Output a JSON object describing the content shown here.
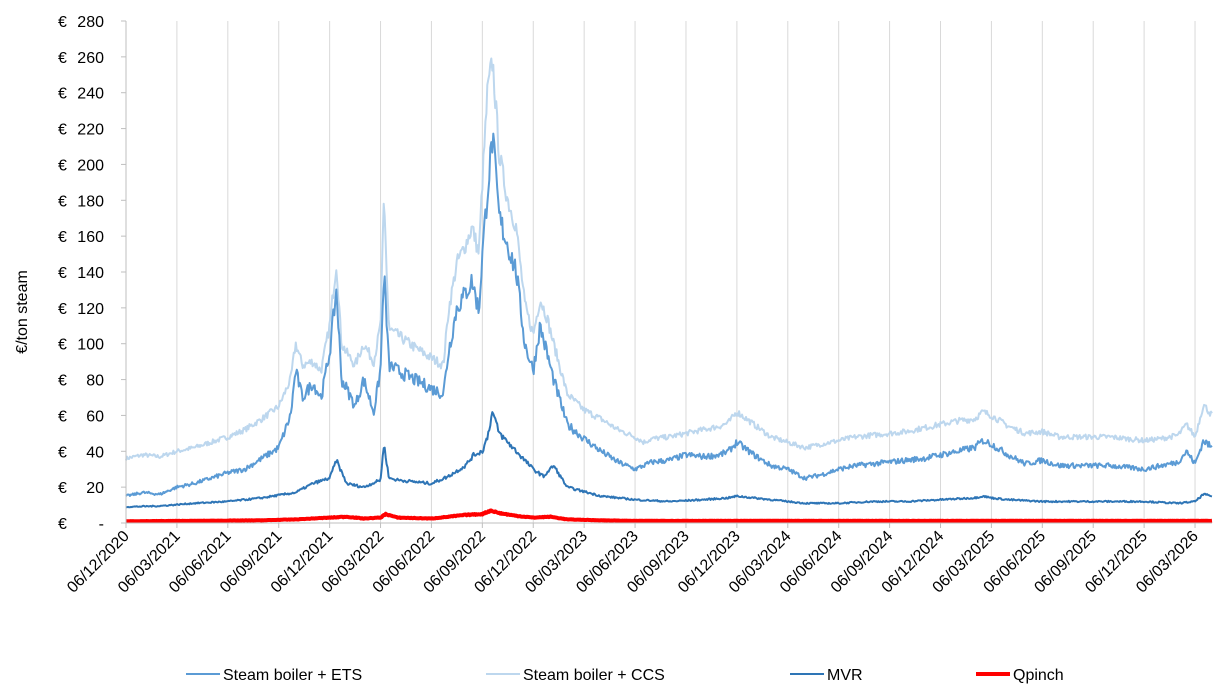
{
  "chart_data": {
    "type": "line",
    "title": "",
    "xlabel": "",
    "ylabel": "€/ton steam",
    "ylim": [
      0,
      280
    ],
    "y_ticks": [
      {
        "value": 0,
        "label": "€ -"
      },
      {
        "value": 20,
        "label": "€ 20"
      },
      {
        "value": 40,
        "label": "€ 40"
      },
      {
        "value": 60,
        "label": "€ 60"
      },
      {
        "value": 80,
        "label": "€ 80"
      },
      {
        "value": 100,
        "label": "€ 100"
      },
      {
        "value": 120,
        "label": "€ 120"
      },
      {
        "value": 140,
        "label": "€ 140"
      },
      {
        "value": 160,
        "label": "€ 160"
      },
      {
        "value": 180,
        "label": "€ 180"
      },
      {
        "value": 200,
        "label": "€ 200"
      },
      {
        "value": 220,
        "label": "€ 220"
      },
      {
        "value": 240,
        "label": "€ 240"
      },
      {
        "value": 260,
        "label": "€ 260"
      },
      {
        "value": 280,
        "label": "€ 280"
      }
    ],
    "x_range_months": [
      0,
      64
    ],
    "x_ticks": [
      {
        "month": 0,
        "label": "06/12/2020"
      },
      {
        "month": 3,
        "label": "06/03/2021"
      },
      {
        "month": 6,
        "label": "06/06/2021"
      },
      {
        "month": 9,
        "label": "06/09/2021"
      },
      {
        "month": 12,
        "label": "06/12/2021"
      },
      {
        "month": 15,
        "label": "06/03/2022"
      },
      {
        "month": 18,
        "label": "06/06/2022"
      },
      {
        "month": 21,
        "label": "06/09/2022"
      },
      {
        "month": 24,
        "label": "06/12/2022"
      },
      {
        "month": 27,
        "label": "06/03/2023"
      },
      {
        "month": 30,
        "label": "06/06/2023"
      },
      {
        "month": 33,
        "label": "06/09/2023"
      },
      {
        "month": 36,
        "label": "06/12/2023"
      },
      {
        "month": 39,
        "label": "06/03/2024"
      },
      {
        "month": 42,
        "label": "06/06/2024"
      },
      {
        "month": 45,
        "label": "06/09/2024"
      },
      {
        "month": 48,
        "label": "06/12/2024"
      },
      {
        "month": 51,
        "label": "06/03/2025"
      },
      {
        "month": 54,
        "label": "06/06/2025"
      },
      {
        "month": 57,
        "label": "06/09/2025"
      },
      {
        "month": 60,
        "label": "06/12/2025"
      },
      {
        "month": 63,
        "label": "06/03/2026"
      }
    ],
    "legend_position": "bottom",
    "series": [
      {
        "name": "Steam boiler + ETS",
        "color": "#5b9bd5",
        "x": [
          0,
          1,
          2,
          3,
          4,
          5,
          6,
          7,
          8,
          9,
          9.7,
          10,
          10.4,
          11,
          11.5,
          12,
          12.4,
          12.7,
          13,
          13.5,
          14,
          14.6,
          15,
          15.2,
          15.5,
          16,
          17,
          18,
          18.7,
          19,
          19.5,
          20,
          20.4,
          20.8,
          21,
          21.3,
          21.6,
          22,
          22.5,
          23,
          23.5,
          24,
          24.4,
          24.8,
          25.2,
          26,
          27,
          28,
          29,
          30,
          30.5,
          31,
          32,
          33,
          34,
          35,
          35.5,
          36,
          37,
          38,
          39,
          40,
          41,
          42,
          43,
          44,
          45,
          46,
          47,
          48,
          49,
          50,
          50.5,
          51,
          52,
          53,
          54,
          55,
          56,
          57,
          58,
          59,
          60,
          61,
          62,
          62.5,
          63,
          63.5,
          64
        ],
        "values": [
          15,
          17,
          16,
          20,
          22,
          25,
          28,
          30,
          36,
          42,
          60,
          85,
          70,
          78,
          70,
          95,
          130,
          80,
          75,
          65,
          80,
          62,
          85,
          140,
          88,
          85,
          80,
          75,
          72,
          95,
          120,
          128,
          135,
          118,
          150,
          185,
          215,
          170,
          155,
          140,
          100,
          85,
          110,
          95,
          80,
          55,
          47,
          40,
          34,
          30,
          32,
          34,
          35,
          38,
          37,
          38,
          40,
          45,
          38,
          32,
          30,
          25,
          27,
          30,
          32,
          33,
          34,
          35,
          36,
          38,
          40,
          42,
          46,
          44,
          38,
          33,
          35,
          32,
          32,
          32,
          32,
          31,
          30,
          32,
          34,
          40,
          33,
          46,
          42
        ]
      },
      {
        "name": "Steam boiler + CCS",
        "color": "#bdd7ee",
        "x": [
          0,
          1,
          2,
          3,
          4,
          5,
          6,
          7,
          8,
          9,
          9.7,
          10,
          10.4,
          11,
          11.5,
          12,
          12.4,
          12.7,
          13,
          13.5,
          14,
          14.6,
          15,
          15.2,
          15.5,
          16,
          17,
          18,
          18.7,
          19,
          19.5,
          20,
          20.4,
          20.8,
          21,
          21.3,
          21.6,
          22,
          22.5,
          23,
          23.5,
          24,
          24.4,
          24.8,
          25.2,
          26,
          27,
          28,
          29,
          30,
          30.5,
          31,
          32,
          33,
          34,
          35,
          35.5,
          36,
          37,
          38,
          39,
          40,
          41,
          42,
          43,
          44,
          45,
          46,
          47,
          48,
          49,
          50,
          50.5,
          51,
          52,
          53,
          54,
          55,
          56,
          57,
          58,
          59,
          60,
          61,
          62,
          62.5,
          63,
          63.5,
          64
        ],
        "values": [
          36,
          38,
          37,
          40,
          42,
          45,
          48,
          52,
          58,
          65,
          80,
          100,
          88,
          90,
          85,
          110,
          145,
          100,
          95,
          88,
          100,
          90,
          110,
          180,
          108,
          105,
          98,
          92,
          88,
          118,
          145,
          155,
          165,
          150,
          190,
          240,
          258,
          205,
          180,
          165,
          122,
          105,
          125,
          115,
          100,
          72,
          63,
          58,
          52,
          48,
          45,
          47,
          48,
          50,
          52,
          54,
          56,
          62,
          55,
          48,
          45,
          42,
          44,
          46,
          48,
          49,
          50,
          51,
          53,
          55,
          57,
          58,
          62,
          60,
          54,
          50,
          51,
          48,
          48,
          48,
          48,
          47,
          46,
          47,
          49,
          55,
          48,
          66,
          60
        ]
      },
      {
        "name": "MVR",
        "color": "#2e75b6",
        "x": [
          0,
          2,
          4,
          6,
          8,
          10,
          11,
          12,
          12.4,
          13,
          14,
          15,
          15.2,
          15.5,
          16,
          18,
          19,
          20,
          20.5,
          21,
          21.3,
          21.6,
          22,
          23,
          24,
          24.6,
          25.2,
          26,
          28,
          30,
          32,
          34,
          35.5,
          36,
          38,
          40,
          42,
          44,
          46,
          48,
          50,
          50.5,
          51,
          52,
          54,
          56,
          58,
          60,
          62,
          63,
          63.5,
          64
        ],
        "values": [
          9,
          9.5,
          11,
          12,
          14,
          17,
          22,
          25,
          35,
          22,
          20,
          24,
          44,
          25,
          24,
          22,
          26,
          32,
          38,
          40,
          48,
          62,
          50,
          40,
          30,
          26,
          32,
          20,
          15,
          13,
          12,
          13,
          14,
          15,
          13,
          11,
          11,
          12,
          12,
          13,
          14,
          15,
          14,
          13,
          12,
          12,
          12,
          12,
          11,
          12,
          16,
          15
        ]
      },
      {
        "name": "Qpinch",
        "color": "#ff0000",
        "x": [
          0,
          4,
          8,
          10,
          12,
          13,
          14,
          15,
          15.3,
          16,
          18,
          19,
          20,
          21,
          21.5,
          22,
          23,
          24,
          25,
          26,
          28,
          30,
          64
        ],
        "values": [
          1,
          1.2,
          1.5,
          2,
          3,
          3.5,
          2.5,
          3,
          5,
          3,
          2.5,
          3.5,
          4.5,
          5,
          7,
          5.5,
          4,
          3,
          3.5,
          2,
          1.5,
          1.2,
          1.2
        ]
      }
    ]
  }
}
